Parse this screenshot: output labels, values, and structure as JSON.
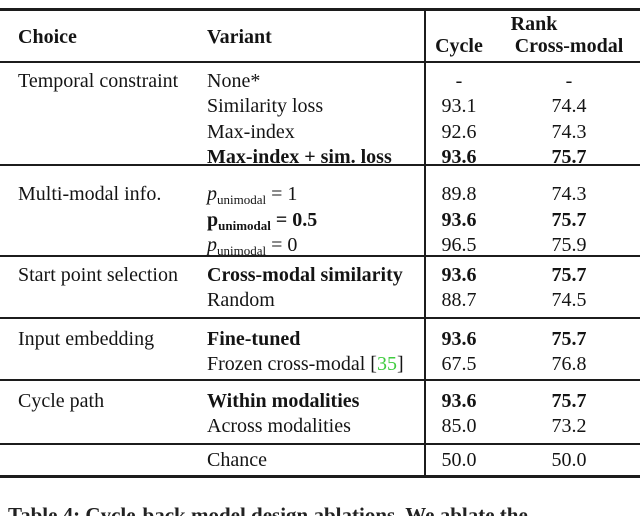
{
  "colors": {
    "text": "#141414",
    "rule": "#1c1c1c",
    "citation_green": "#3fcc3f"
  },
  "header": {
    "col_choice": "Choice",
    "col_variant": "Variant",
    "rank_group": "Rank",
    "col_cycle": "Cycle",
    "col_crossmodal": "Cross-modal"
  },
  "sections": [
    {
      "choice": "Temporal constraint",
      "rows": [
        {
          "variant": "None*",
          "cycle": "-",
          "crossmodal": "-"
        },
        {
          "variant": "Similarity loss",
          "cycle": "93.1",
          "crossmodal": "74.4"
        },
        {
          "variant": "Max-index",
          "cycle": "92.6",
          "crossmodal": "74.3"
        },
        {
          "variant": "Max-index + sim. loss",
          "cycle": "93.6",
          "crossmodal": "75.7",
          "bold": true
        }
      ]
    },
    {
      "choice": "Multi-modal info.",
      "rows": [
        {
          "math_base": "p",
          "math_sub": "unimodal",
          "math_eq": "1",
          "cycle": "89.8",
          "crossmodal": "74.3"
        },
        {
          "math_base": "p",
          "math_sub": "unimodal",
          "math_eq": "0.5",
          "cycle": "93.6",
          "crossmodal": "75.7",
          "bold": true
        },
        {
          "math_base": "p",
          "math_sub": "unimodal",
          "math_eq": "0",
          "cycle": "96.5",
          "crossmodal": "75.9"
        }
      ]
    },
    {
      "choice": "Start point selection",
      "rows": [
        {
          "variant": "Cross-modal similarity",
          "cycle": "93.6",
          "crossmodal": "75.7",
          "bold": true
        },
        {
          "variant": "Random",
          "cycle": "88.7",
          "crossmodal": "74.5"
        }
      ]
    },
    {
      "choice": "Input embedding",
      "rows": [
        {
          "variant": "Fine-tuned",
          "cycle": "93.6",
          "crossmodal": "75.7",
          "bold": true
        },
        {
          "variant": "Frozen cross-modal ",
          "citation": "35",
          "cycle": "67.5",
          "crossmodal": "76.8"
        }
      ]
    },
    {
      "choice": "Cycle path",
      "rows": [
        {
          "variant": "Within modalities",
          "cycle": "93.6",
          "crossmodal": "75.7",
          "bold": true
        },
        {
          "variant": "Across modalities",
          "cycle": "85.0",
          "crossmodal": "73.2"
        }
      ]
    },
    {
      "choice": "",
      "rows": [
        {
          "variant": "Chance",
          "cycle": "50.0",
          "crossmodal": "50.0"
        }
      ]
    }
  ],
  "caption_partial": "Table 4: Cycle-back model design ablations. We ablate the"
}
